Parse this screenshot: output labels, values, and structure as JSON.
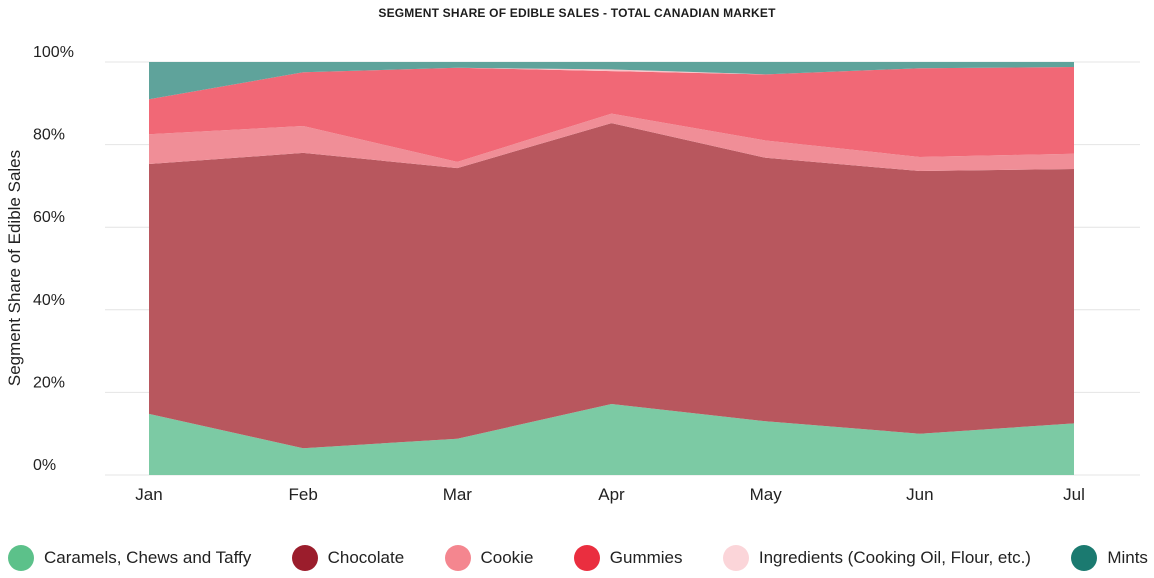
{
  "chart_data": {
    "type": "area",
    "stacked": true,
    "normalized": true,
    "title": "SEGMENT SHARE OF EDIBLE SALES - TOTAL CANADIAN MARKET",
    "xlabel": "",
    "ylabel": "Segment Share of Edible Sales",
    "ylim": [
      0,
      100
    ],
    "yticks": [
      "0%",
      "20%",
      "40%",
      "60%",
      "80%",
      "100%"
    ],
    "categories": [
      "Jan",
      "Feb",
      "Mar",
      "Apr",
      "May",
      "Jun",
      "Jul"
    ],
    "grid": true,
    "legend_position": "bottom",
    "series": [
      {
        "name": "Caramels, Chews and Taffy",
        "color": "#7ccaa4",
        "legend_color": "#5cc18a",
        "values": [
          14.8,
          6.5,
          8.8,
          17.2,
          13,
          10,
          12.5
        ]
      },
      {
        "name": "Chocolate",
        "color": "#b8575e",
        "legend_color": "#9b1d2c",
        "values": [
          60.5,
          71.5,
          65.5,
          68,
          63.8,
          63.6,
          61.6
        ]
      },
      {
        "name": "Cookie",
        "color": "#f08e97",
        "legend_color": "#f4868f",
        "values": [
          7.2,
          6.5,
          1.5,
          2.3,
          4.2,
          3.4,
          3.7
        ]
      },
      {
        "name": "Gummies",
        "color": "#f16876",
        "legend_color": "#ea2e3f",
        "values": [
          8.5,
          13,
          22.8,
          10.3,
          16,
          21.5,
          21
        ]
      },
      {
        "name": "Ingredients (Cooking Oil, Flour, etc.)",
        "color": "#f9c3c8",
        "legend_color": "#fbd5d9",
        "values": [
          0,
          0,
          0,
          0.4,
          0,
          0,
          0
        ]
      },
      {
        "name": "Mints",
        "color": "#5fa39b",
        "legend_color": "#1b7a70",
        "values": [
          9,
          2.5,
          1.4,
          1.8,
          3,
          1.5,
          1.2
        ]
      }
    ]
  }
}
